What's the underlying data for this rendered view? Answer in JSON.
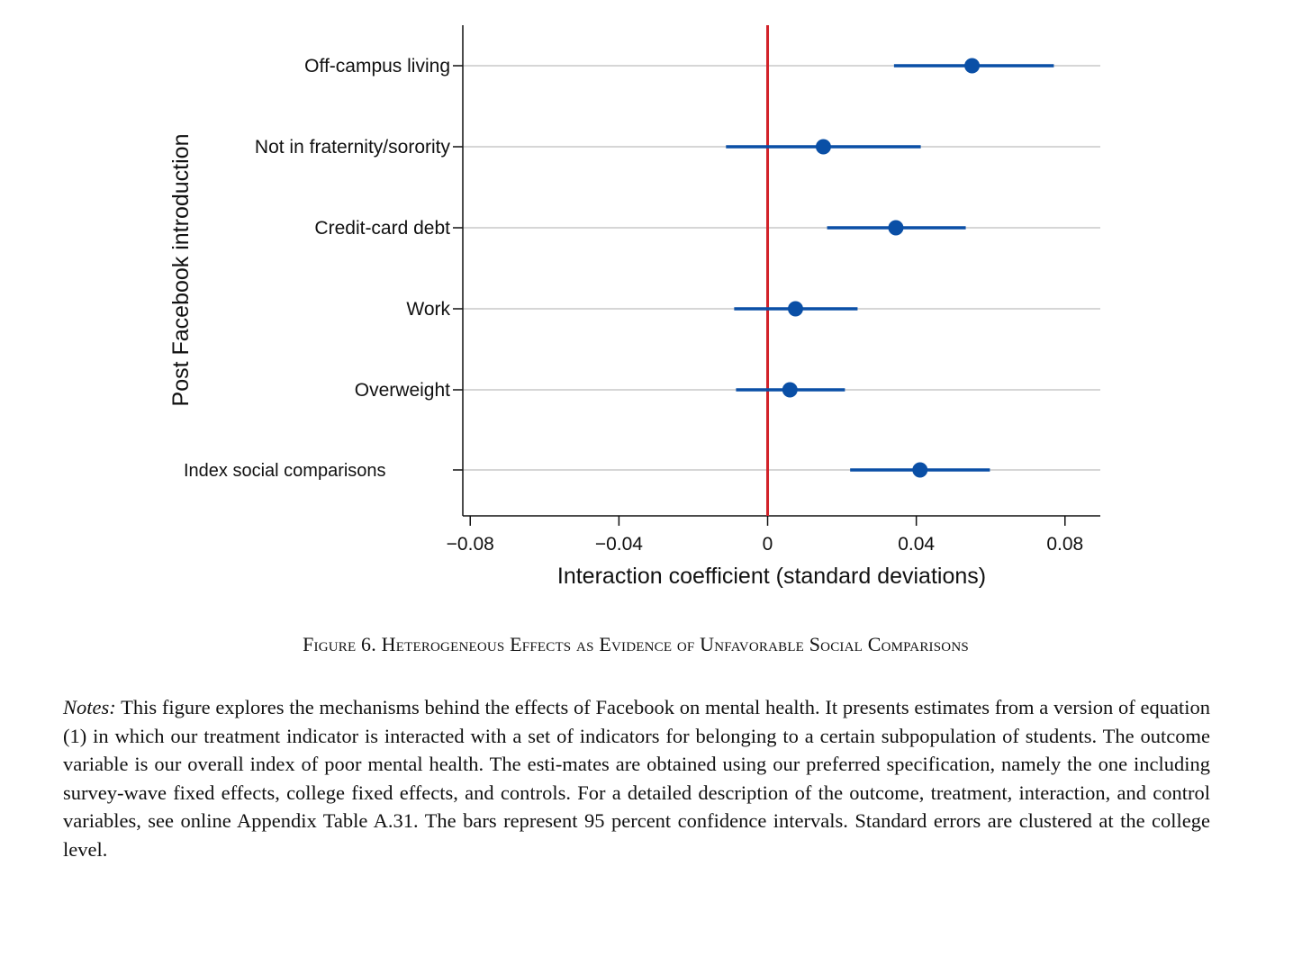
{
  "chart_data": {
    "type": "scatter",
    "subtype": "coefficient-plot",
    "ylabel": "Post Facebook introduction",
    "xlabel": "Interaction coefficient (standard deviations)",
    "xlim": [
      -0.082,
      0.0895
    ],
    "xticks": [
      {
        "value": -0.08,
        "label": "−0.08"
      },
      {
        "value": -0.04,
        "label": "−0.04"
      },
      {
        "value": 0,
        "label": "0"
      },
      {
        "value": 0.04,
        "label": "0.04"
      },
      {
        "value": 0.08,
        "label": "0.08"
      }
    ],
    "reference_line": 0,
    "grid": "horizontal",
    "categories": [
      "Off-campus living",
      "Not in fraternity/sorority",
      "Credit-card debt",
      "Work",
      "Overweight",
      "Index social comparisons"
    ],
    "estimates": [
      0.055,
      0.015,
      0.0345,
      0.0075,
      0.006,
      0.041
    ],
    "ci_low": [
      0.034,
      -0.0112,
      0.016,
      -0.009,
      -0.0085,
      0.0222
    ],
    "ci_high": [
      0.077,
      0.0412,
      0.0533,
      0.0242,
      0.0208,
      0.0598
    ],
    "colors": {
      "point": "#0a4fa6",
      "reference_line": "#d2232a",
      "grid": "#c8c8c8",
      "axis": "#111111"
    }
  },
  "caption": "Figure 6. Heterogeneous Effects as Evidence of Unfavorable Social Comparisons",
  "notes_label": "Notes:",
  "notes_text": " This figure explores the mechanisms behind the effects of Facebook on mental health. It presents estimates from a version of equation (1) in which our treatment indicator is interacted with a set of indicators for belonging to a certain subpopulation of students. The outcome variable is our overall index of poor mental health. The esti-mates are obtained using our preferred specification, namely the one including survey-wave fixed effects, college fixed effects, and controls. For a detailed description of the outcome, treatment, interaction, and control variables, see online Appendix Table A.31. The bars represent 95 percent confidence intervals. Standard errors are clustered at the college level."
}
